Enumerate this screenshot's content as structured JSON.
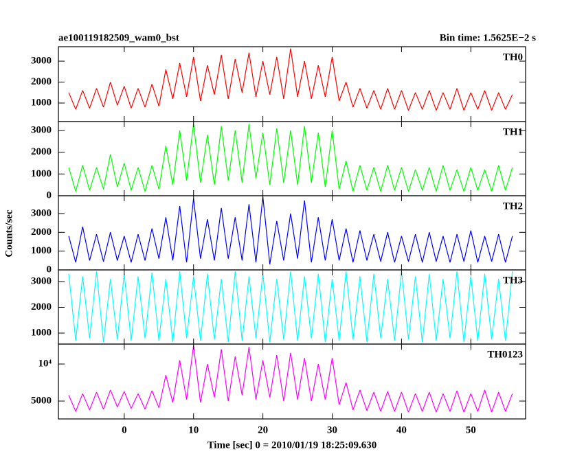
{
  "figure": {
    "title": "ae100119182509_wam0_bst",
    "bin_time": "Bin time: 1.5625E−2 s",
    "ylabel": "Counts/sec",
    "xlabel": "Time [sec] 0 = 2010/01/19 18:25:09.630"
  },
  "x": [
    -8,
    -7,
    -6,
    -5,
    -4,
    -3,
    -2,
    -1,
    0,
    1,
    2,
    3,
    4,
    5,
    6,
    7,
    8,
    9,
    10,
    11,
    12,
    13,
    14,
    15,
    16,
    17,
    18,
    19,
    20,
    21,
    22,
    23,
    24,
    25,
    26,
    27,
    28,
    29,
    30,
    31,
    32,
    33,
    34,
    35,
    36,
    37,
    38,
    39,
    40,
    41,
    42,
    43,
    44,
    45,
    46,
    47,
    48,
    49,
    50,
    51,
    52,
    53,
    54,
    55,
    56
  ],
  "xlim": [
    -9.5,
    57.9
  ],
  "xticks": [
    0,
    10,
    20,
    30,
    40,
    50
  ],
  "chart_data": [
    {
      "type": "line",
      "ylim": [
        115,
        3690
      ],
      "yticks": [
        1000,
        2000,
        3000
      ],
      "series": [
        {
          "name": "TH0",
          "color": "#ff0000",
          "values": [
            1500,
            700,
            1600,
            750,
            1700,
            800,
            2000,
            900,
            1800,
            750,
            1700,
            800,
            1900,
            850,
            2600,
            1200,
            2900,
            1300,
            3200,
            1100,
            2800,
            1400,
            3300,
            1200,
            3100,
            1500,
            3400,
            1300,
            3000,
            1400,
            3200,
            1200,
            3600,
            1300,
            3000,
            1200,
            2800,
            1300,
            3200,
            1100,
            2000,
            800,
            1700,
            750,
            1600,
            700,
            1700,
            700,
            1600,
            650,
            1500,
            700,
            1600,
            650,
            1500,
            700,
            1700,
            650,
            1500,
            700,
            1600,
            650,
            1500,
            700,
            1400
          ]
        }
      ]
    },
    {
      "type": "line",
      "ylim": [
        0,
        3410
      ],
      "yticks": [
        0,
        1000,
        2000,
        3000
      ],
      "series": [
        {
          "name": "TH1",
          "color": "#00ff00",
          "values": [
            1300,
            200,
            1400,
            250,
            1300,
            300,
            1900,
            400,
            1500,
            250,
            1300,
            200,
            1400,
            300,
            2300,
            500,
            3000,
            700,
            3300,
            600,
            2800,
            500,
            3200,
            700,
            3000,
            600,
            3300,
            800,
            2900,
            500,
            3100,
            600,
            3000,
            500,
            3200,
            600,
            2900,
            400,
            3000,
            300,
            1600,
            200,
            1400,
            250,
            1300,
            200,
            1400,
            250,
            1300,
            200,
            1200,
            250,
            1300,
            200,
            1400,
            250,
            1200,
            200,
            1300,
            250,
            1200,
            200,
            1400,
            250,
            1300
          ]
        }
      ]
    },
    {
      "type": "line",
      "ylim": [
        0,
        3950
      ],
      "yticks": [
        0,
        1000,
        2000,
        3000
      ],
      "series": [
        {
          "name": "TH2",
          "color": "#0000ff",
          "values": [
            1800,
            400,
            2300,
            500,
            1900,
            450,
            2000,
            500,
            1800,
            400,
            1900,
            500,
            2200,
            600,
            2800,
            500,
            3400,
            400,
            3800,
            600,
            2700,
            500,
            3300,
            600,
            2800,
            500,
            3500,
            400,
            3900,
            300,
            2600,
            500,
            3000,
            600,
            3700,
            400,
            2800,
            500,
            2700,
            500,
            2200,
            400,
            2100,
            500,
            1900,
            450,
            2000,
            400,
            1800,
            450,
            1900,
            400,
            2000,
            450,
            1800,
            400,
            1900,
            450,
            2100,
            400,
            1800,
            450,
            1900,
            400,
            1800
          ]
        }
      ]
    },
    {
      "type": "line",
      "ylim": [
        573,
        3453
      ],
      "yticks": [
        1000,
        2000,
        3000
      ],
      "series": [
        {
          "name": "TH3",
          "color": "#00ffff",
          "values": [
            3300,
            700,
            3200,
            800,
            3400,
            650,
            3100,
            750,
            3300,
            700,
            3200,
            800,
            3350,
            700,
            3100,
            650,
            3400,
            800,
            3200,
            700,
            3300,
            750,
            3100,
            650,
            3400,
            700,
            3200,
            800,
            3300,
            650,
            3100,
            750,
            3400,
            700,
            3200,
            800,
            3300,
            650,
            3100,
            700,
            3400,
            750,
            3200,
            650,
            3300,
            800,
            3100,
            700,
            3400,
            750,
            3200,
            650,
            3300,
            700,
            3100,
            800,
            3400,
            650,
            3200,
            700,
            3300,
            750,
            3100,
            700,
            3400
          ]
        }
      ]
    },
    {
      "type": "line",
      "ylim": [
        2590,
        12690
      ],
      "yticks": [
        5000,
        {
          "value": 10000,
          "label": "10⁴"
        }
      ],
      "series": [
        {
          "name": "TH0123",
          "color": "#ff00ff",
          "values": [
            5800,
            3600,
            6000,
            3800,
            6200,
            3900,
            6500,
            4200,
            6300,
            4000,
            6000,
            3900,
            6400,
            4100,
            8500,
            4800,
            10500,
            5200,
            12500,
            4800,
            10000,
            5500,
            12000,
            5000,
            11000,
            5800,
            12300,
            5200,
            10500,
            5500,
            11200,
            5000,
            11500,
            5200,
            10800,
            5000,
            10000,
            5200,
            10800,
            4500,
            7500,
            3800,
            6500,
            3700,
            6200,
            3600,
            6300,
            3600,
            6200,
            3500,
            6000,
            3600,
            6200,
            3500,
            6000,
            3600,
            6400,
            3500,
            6000,
            3600,
            6500,
            3500,
            6200,
            3600,
            6000
          ]
        }
      ]
    }
  ]
}
